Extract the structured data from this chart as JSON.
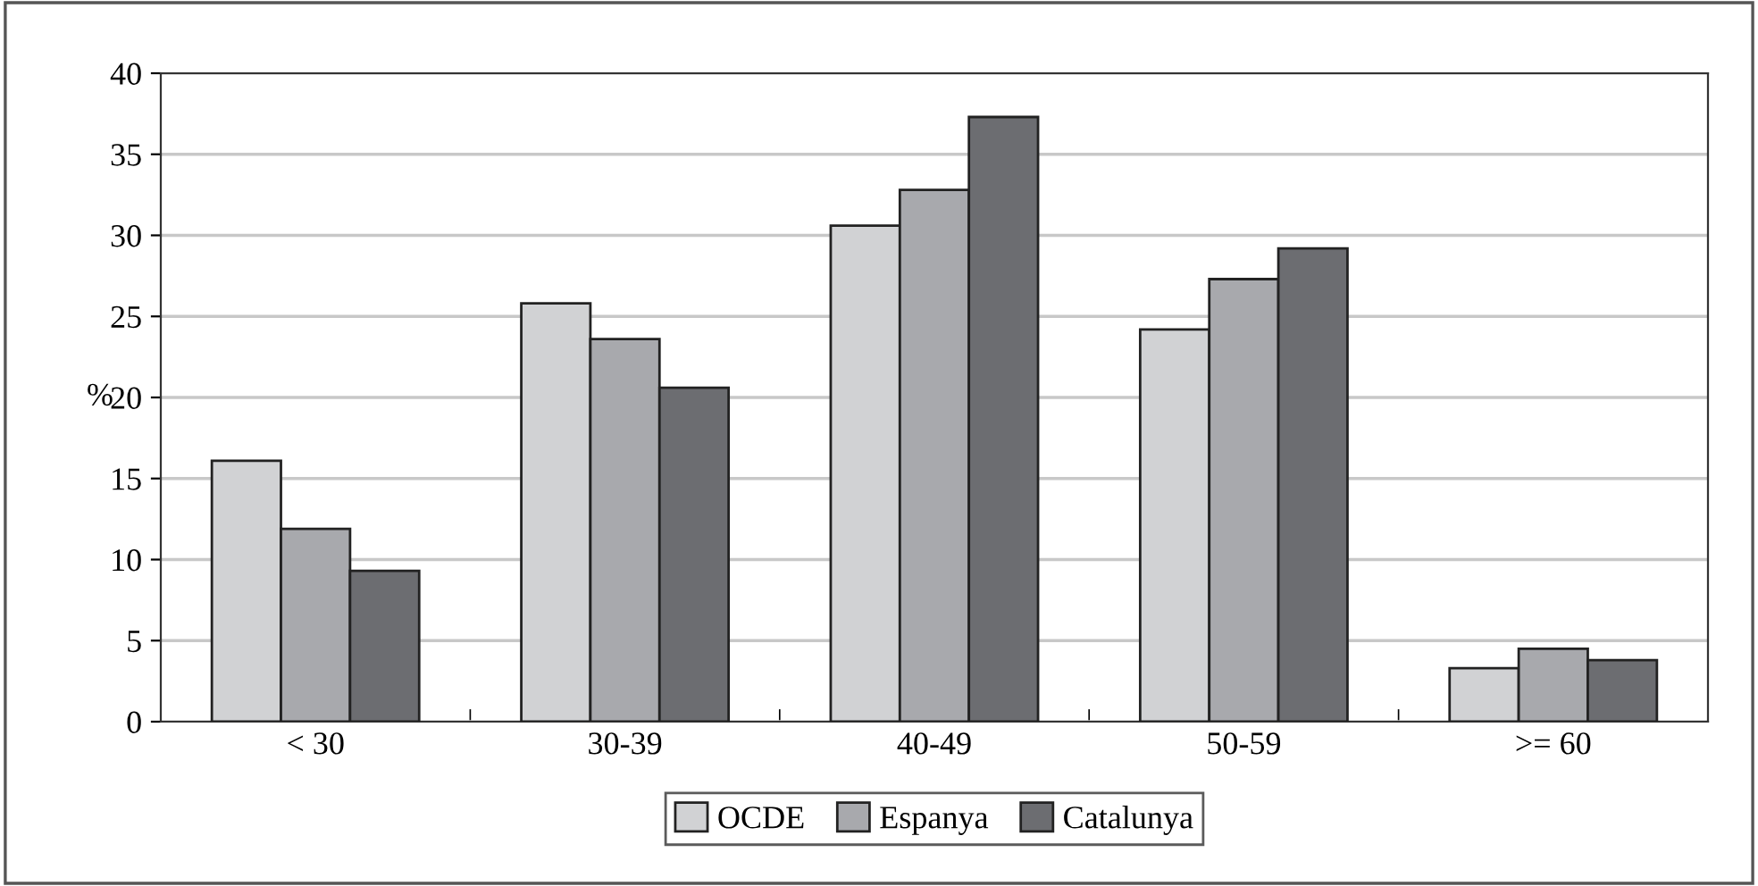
{
  "chart_data": {
    "type": "bar",
    "ylabel": "%",
    "categories": [
      "< 30",
      "30-39",
      "40-49",
      "50-59",
      ">= 60"
    ],
    "series": [
      {
        "name": "OCDE",
        "color": "#d1d2d4",
        "values": [
          16.1,
          25.8,
          30.6,
          24.2,
          3.3
        ]
      },
      {
        "name": "Espanya",
        "color": "#a8a9ad",
        "values": [
          11.9,
          23.6,
          32.8,
          27.3,
          4.5
        ]
      },
      {
        "name": "Catalunya",
        "color": "#6c6d71",
        "values": [
          9.3,
          20.6,
          37.3,
          29.2,
          3.8
        ]
      }
    ],
    "ylim": [
      0,
      40
    ],
    "yticks": [
      0,
      5,
      10,
      15,
      20,
      25,
      30,
      35,
      40
    ],
    "grid": "y",
    "legend": "bottom"
  }
}
